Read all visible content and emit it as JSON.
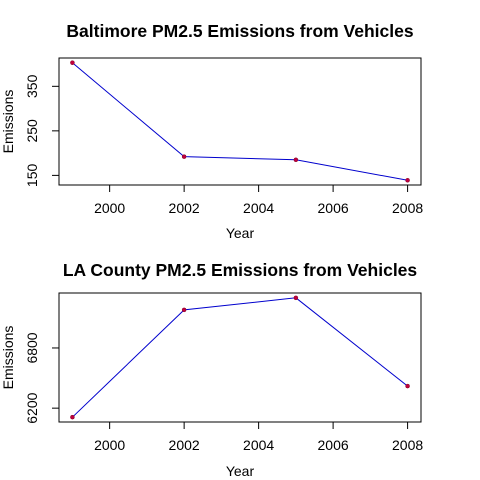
{
  "chart_data": [
    {
      "type": "line",
      "title": "Baltimore PM2.5 Emissions from Vehicles",
      "xlabel": "Year",
      "ylabel": "Emissions",
      "x": [
        1999,
        2002,
        2005,
        2008
      ],
      "values": [
        403,
        192,
        185,
        139
      ],
      "xticks": [
        2000,
        2002,
        2004,
        2006,
        2008
      ],
      "yticks": [
        150,
        250,
        350
      ],
      "xlim": [
        1998.64,
        2008.36
      ],
      "ylim": [
        128.4,
        413.6
      ],
      "grid": false,
      "line_color": "#0000cd",
      "point_color": "#c00040"
    },
    {
      "type": "line",
      "title": "LA County PM2.5 Emissions from Vehicles",
      "xlabel": "Year",
      "ylabel": "Emissions",
      "x": [
        1999,
        2002,
        2005,
        2008
      ],
      "values": [
        6110,
        7180,
        7300,
        6420
      ],
      "xticks": [
        2000,
        2002,
        2004,
        2006,
        2008
      ],
      "yticks": [
        6200,
        6800
      ],
      "xlim": [
        1998.64,
        2008.36
      ],
      "ylim": [
        6062,
        7348
      ],
      "grid": false,
      "line_color": "#0000cd",
      "point_color": "#c00040"
    }
  ]
}
